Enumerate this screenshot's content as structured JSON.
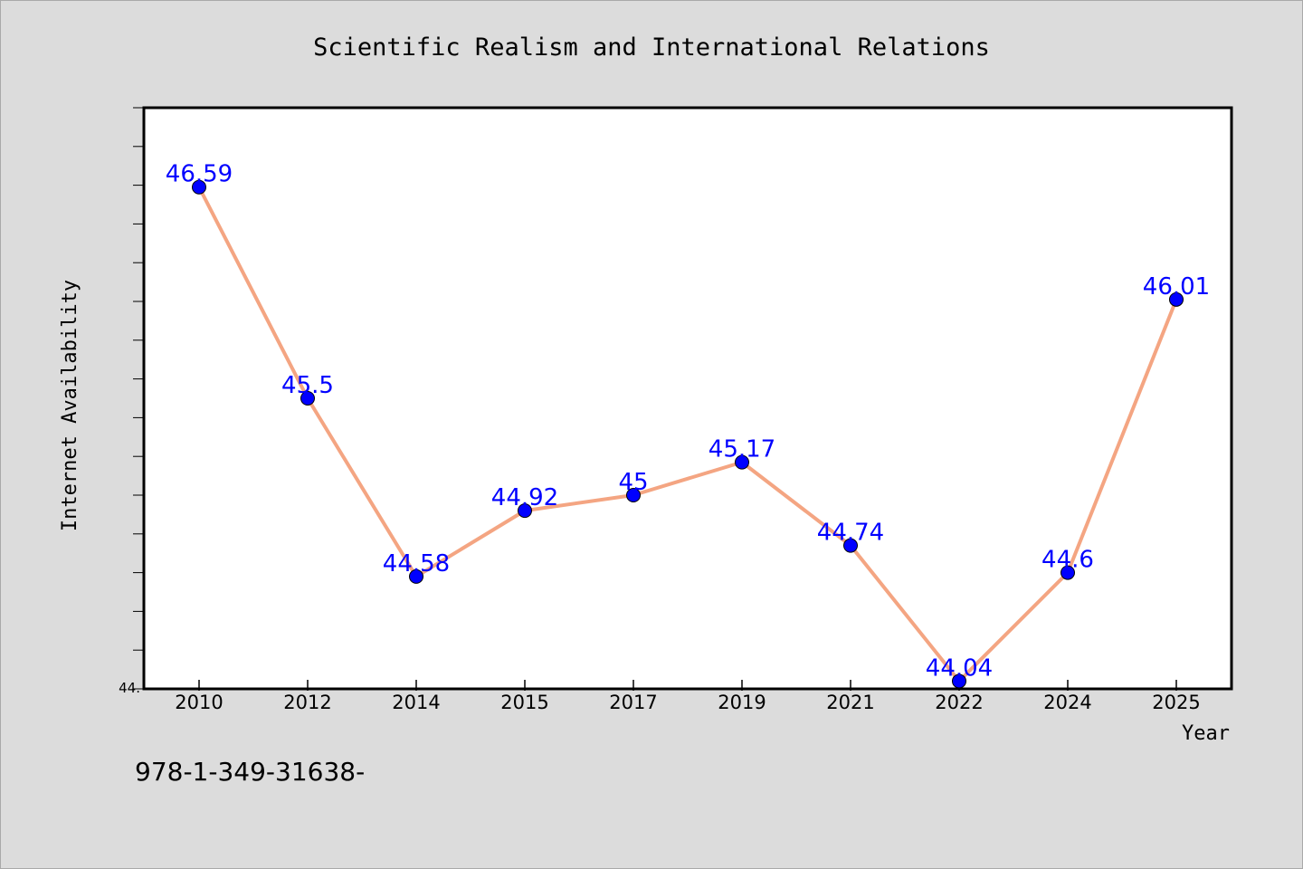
{
  "chart_data": {
    "type": "line",
    "title": "Scientific Realism and International Relations",
    "xlabel": "Year",
    "ylabel": "Internet Availability",
    "categories": [
      "2010",
      "2012",
      "2014",
      "2015",
      "2017",
      "2019",
      "2021",
      "2022",
      "2024",
      "2025"
    ],
    "series": [
      {
        "values": [
          46.59,
          45.5,
          44.58,
          44.92,
          45.0,
          45.17,
          44.74,
          44.04,
          44.6,
          46.01
        ],
        "point_labels": [
          "46.59",
          "45.5",
          "44.58",
          "44.92",
          "45",
          "45.17",
          "44.74",
          "44.04",
          "44.6",
          "46.01"
        ]
      }
    ],
    "ylim": [
      44.0,
      47.0
    ],
    "ytick_labels": [
      "44."
    ],
    "grid": false,
    "legend": "none",
    "colors": {
      "line": "#f4a582",
      "marker": "#0000ff",
      "data_label": "#0000ff",
      "plot_background": "#ffffff",
      "figure_background": "#dcdcdc"
    }
  },
  "footnote": "978-1-349-31638-"
}
